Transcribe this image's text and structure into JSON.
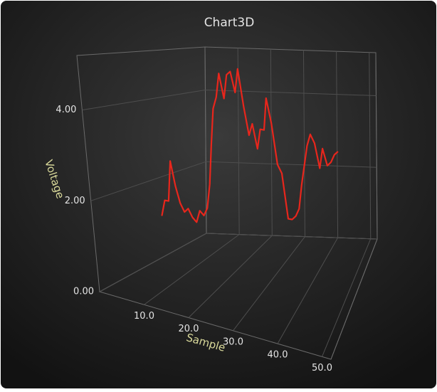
{
  "chart_data": {
    "type": "line3d",
    "title": "Chart3D",
    "x_label": "Sample",
    "y_label": "Voltage",
    "x": [
      3,
      4,
      5,
      6,
      7,
      8,
      9,
      10,
      11,
      12,
      13,
      14,
      15,
      16,
      17,
      18,
      19,
      20,
      21,
      22,
      23,
      24,
      25,
      26,
      27,
      28,
      29,
      30,
      31,
      32,
      33,
      34,
      35,
      36,
      37,
      38,
      39,
      40,
      41,
      42,
      43,
      44,
      45,
      46,
      47,
      48,
      49,
      50
    ],
    "series": [
      {
        "name": "Voltage",
        "color": "#e8261c",
        "values": [
          1.2,
          1.6,
          1.6,
          2.6,
          2.0,
          1.6,
          1.4,
          1.5,
          1.3,
          1.2,
          1.5,
          1.4,
          1.6,
          2.2,
          3.2,
          4.1,
          4.4,
          5.0,
          4.4,
          5.0,
          5.1,
          4.6,
          5.2,
          4.3,
          3.6,
          3.9,
          3.3,
          3.8,
          3.8,
          4.6,
          4.0,
          3.0,
          2.8,
          1.7,
          1.7,
          1.8,
          2.0,
          2.6,
          3.1,
          3.6,
          3.9,
          3.7,
          3.1,
          3.6,
          3.2,
          3.3,
          3.5,
          3.6
        ]
      }
    ],
    "xlim": [
      0,
      52
    ],
    "xticks": [
      {
        "value": 10,
        "label": "10.0"
      },
      {
        "value": 20,
        "label": "20.0"
      },
      {
        "value": 30,
        "label": "30.0"
      },
      {
        "value": 40,
        "label": "40.0"
      },
      {
        "value": 50,
        "label": "50.0"
      }
    ],
    "ylim": [
      0,
      5.2
    ],
    "yticks": [
      {
        "value": 0,
        "label": "0.00"
      },
      {
        "value": 2,
        "label": "2.00"
      },
      {
        "value": 4,
        "label": "4.00"
      }
    ],
    "grid": true
  }
}
